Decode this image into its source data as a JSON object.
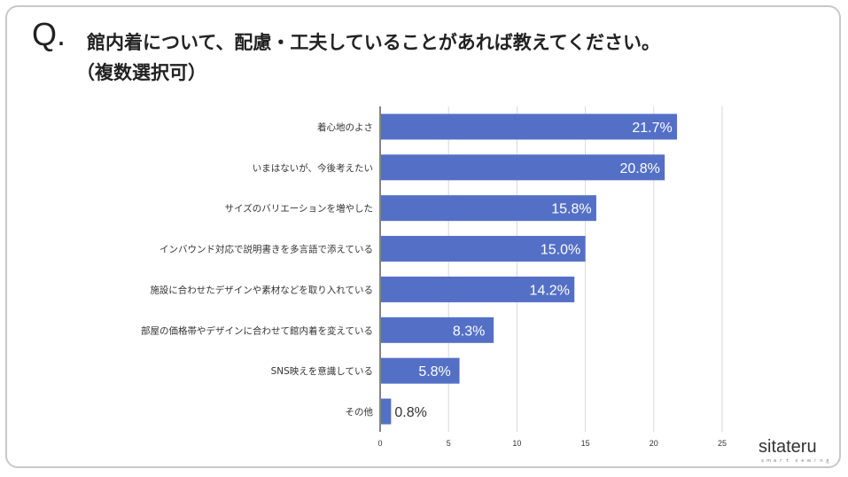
{
  "header": {
    "q_mark": "Q.",
    "question": "館内着について、配慮・工夫していることがあれば教えてください。",
    "note": "（複数選択可）"
  },
  "logo": {
    "text": "sitateru",
    "sub": "ｓｍａｒｔ ｓｅｗｉｎｇ"
  },
  "colors": {
    "bar": "#5470c6",
    "grid": "#d9d9d9",
    "axis": "#333333",
    "label_in": "#ffffff",
    "label_out": "#333333"
  },
  "chart_data": {
    "type": "bar",
    "orientation": "horizontal",
    "categories": [
      "着心地のよさ",
      "いまはないが、今後考えたい",
      "サイズのバリエーションを増やした",
      "インバウンド対応で説明書きを多言語で添えている",
      "施設に合わせたデザインや素材などを取り入れている",
      "部屋の価格帯やデザインに合わせて館内着を変えている",
      "SNS映えを意識している",
      "その他"
    ],
    "values": [
      21.7,
      20.8,
      15.8,
      15.0,
      14.2,
      8.3,
      5.8,
      0.8
    ],
    "value_labels": [
      "21.7%",
      "20.8%",
      "15.8%",
      "15.0%",
      "14.2%",
      "8.3%",
      "5.8%",
      "0.8%"
    ],
    "xlim": [
      0,
      25
    ],
    "xticks": [
      "0",
      "5",
      "10",
      "15",
      "20",
      "25"
    ],
    "grid": true
  }
}
